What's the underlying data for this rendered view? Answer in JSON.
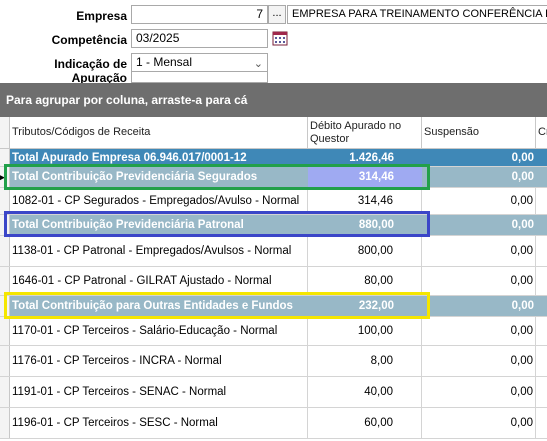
{
  "form": {
    "empresa_label": "Empresa",
    "empresa_code": "7",
    "empresa_btn": "...",
    "empresa_name": "EMPRESA PARA TREINAMENTO CONFERÊNCIA INSS",
    "competencia_label": "Competência",
    "competencia_value": "03/2025",
    "apuracao_label": "Indicação de Apuração",
    "apuracao_value": "1 - Mensal",
    "calendar_icon": "calendar-icon"
  },
  "grid": {
    "group_hint": "Para agrupar por coluna, arraste-a para cá",
    "columns": [
      "Tributos/Códigos de Receita",
      "Débito Apurado no Questor",
      "Suspensão",
      "Cr"
    ],
    "rows": [
      {
        "kind": "group-dark",
        "label": "Total Apurado Empresa 06.946.017/0001-12",
        "debito": "1.426,46",
        "suspensao": "0,00"
      },
      {
        "kind": "group-light",
        "label": "Total Contribuição Previdenciária Segurados",
        "debito": "314,46",
        "suspensao": "0,00",
        "selected": true
      },
      {
        "kind": "item",
        "label": "1082-01 - CP Segurados - Empregados/Avulso - Normal",
        "debito": "314,46",
        "suspensao": "0,00"
      },
      {
        "kind": "group-light",
        "label": "Total Contribuição Previdenciária Patronal",
        "debito": "880,00",
        "suspensao": "0,00"
      },
      {
        "kind": "item",
        "label": "1138-01 - CP Patronal - Empregados/Avulsos - Normal",
        "debito": "800,00",
        "suspensao": "0,00"
      },
      {
        "kind": "item",
        "label": "1646-01 - CP Patronal - GILRAT Ajustado - Normal",
        "debito": "80,00",
        "suspensao": "0,00"
      },
      {
        "kind": "group-light",
        "label": "Total Contribuição para Outras Entidades e Fundos",
        "debito": "232,00",
        "suspensao": "0,00"
      },
      {
        "kind": "item",
        "label": "1170-01 - CP Terceiros - Salário-Educação - Normal",
        "debito": "100,00",
        "suspensao": "0,00"
      },
      {
        "kind": "item",
        "label": "1176-01 - CP Terceiros - INCRA - Normal",
        "debito": "8,00",
        "suspensao": "0,00"
      },
      {
        "kind": "item",
        "label": "1191-01 - CP Terceiros - SENAC - Normal",
        "debito": "40,00",
        "suspensao": "0,00"
      },
      {
        "kind": "item",
        "label": "1196-01 - CP Terceiros - SESC - Normal",
        "debito": "60,00",
        "suspensao": "0,00"
      }
    ]
  },
  "highlight_colors": {
    "green": "#22a04a",
    "blue": "#3b46c8",
    "yellow": "#f5e600"
  }
}
